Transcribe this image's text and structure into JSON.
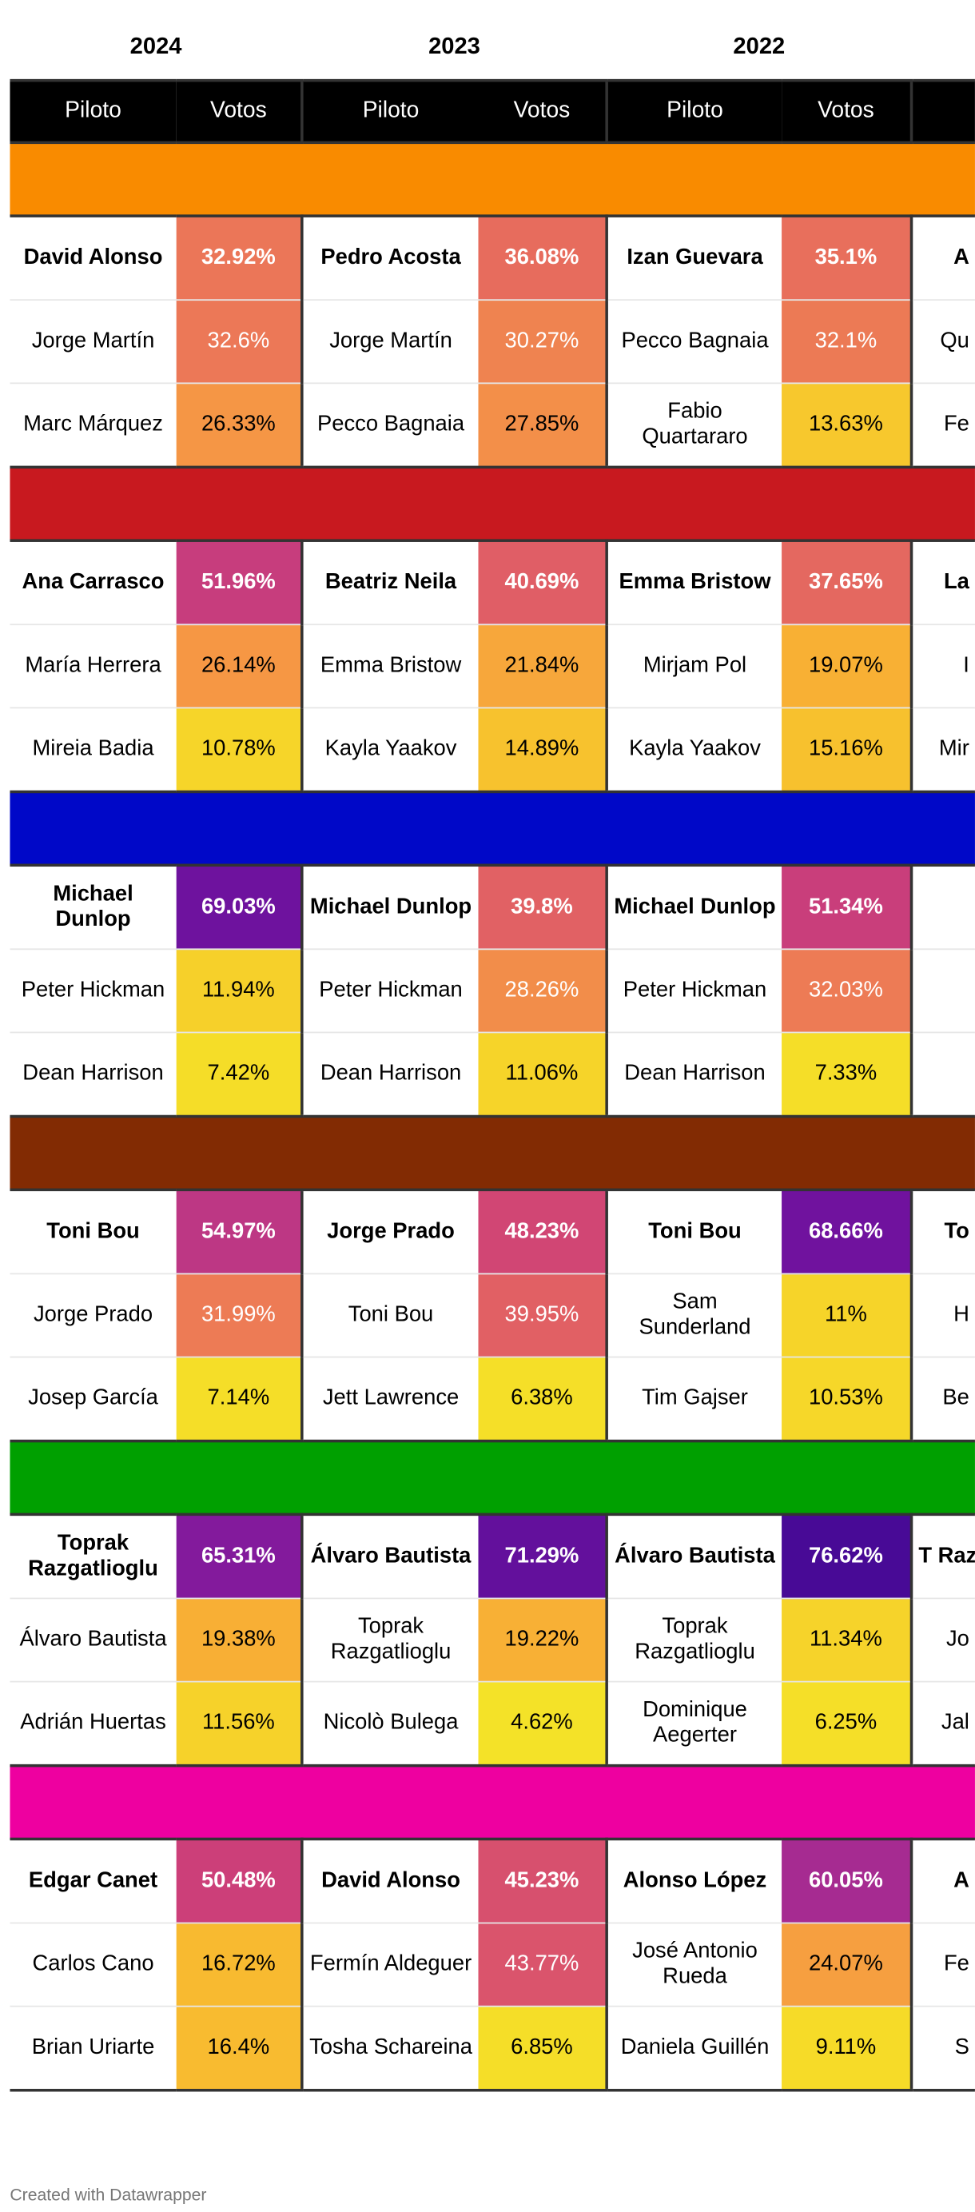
{
  "years": [
    "2024",
    "2023",
    "2022"
  ],
  "col_headers": {
    "pilot": "Piloto",
    "votes": "Votos"
  },
  "credit": "Created with Datawrapper",
  "chart_data": {
    "type": "table",
    "columns": [
      "2024",
      "2023",
      "2022"
    ],
    "groups": [
      {
        "color": "#f98b00",
        "rows": [
          [
            {
              "pilot": "David Alonso",
              "votes": "32.92%",
              "value": 32.92
            },
            {
              "pilot": "Pedro Acosta",
              "votes": "36.08%",
              "value": 36.08
            },
            {
              "pilot": "Izan Guevara",
              "votes": "35.1%",
              "value": 35.1
            }
          ],
          [
            {
              "pilot": "Jorge Martín",
              "votes": "32.6%",
              "value": 32.6
            },
            {
              "pilot": "Jorge Martín",
              "votes": "30.27%",
              "value": 30.27
            },
            {
              "pilot": "Pecco Bagnaia",
              "votes": "32.1%",
              "value": 32.1
            }
          ],
          [
            {
              "pilot": "Marc Márquez",
              "votes": "26.33%",
              "value": 26.33
            },
            {
              "pilot": "Pecco Bagnaia",
              "votes": "27.85%",
              "value": 27.85
            },
            {
              "pilot": "Fabio Quartararo",
              "votes": "13.63%",
              "value": 13.63
            }
          ]
        ]
      },
      {
        "color": "#c8191f",
        "rows": [
          [
            {
              "pilot": "Ana Carrasco",
              "votes": "51.96%",
              "value": 51.96
            },
            {
              "pilot": "Beatriz Neila",
              "votes": "40.69%",
              "value": 40.69
            },
            {
              "pilot": "Emma Bristow",
              "votes": "37.65%",
              "value": 37.65
            }
          ],
          [
            {
              "pilot": "María Herrera",
              "votes": "26.14%",
              "value": 26.14
            },
            {
              "pilot": "Emma Bristow",
              "votes": "21.84%",
              "value": 21.84
            },
            {
              "pilot": "Mirjam Pol",
              "votes": "19.07%",
              "value": 19.07
            }
          ],
          [
            {
              "pilot": "Mireia Badia",
              "votes": "10.78%",
              "value": 10.78
            },
            {
              "pilot": "Kayla Yaakov",
              "votes": "14.89%",
              "value": 14.89
            },
            {
              "pilot": "Kayla Yaakov",
              "votes": "15.16%",
              "value": 15.16
            }
          ]
        ]
      },
      {
        "color": "#0008c8",
        "rows": [
          [
            {
              "pilot": "Michael Dunlop",
              "votes": "69.03%",
              "value": 69.03
            },
            {
              "pilot": "Michael Dunlop",
              "votes": "39.8%",
              "value": 39.8
            },
            {
              "pilot": "Michael Dunlop",
              "votes": "51.34%",
              "value": 51.34
            }
          ],
          [
            {
              "pilot": "Peter Hickman",
              "votes": "11.94%",
              "value": 11.94
            },
            {
              "pilot": "Peter Hickman",
              "votes": "28.26%",
              "value": 28.26
            },
            {
              "pilot": "Peter Hickman",
              "votes": "32.03%",
              "value": 32.03
            }
          ],
          [
            {
              "pilot": "Dean Harrison",
              "votes": "7.42%",
              "value": 7.42
            },
            {
              "pilot": "Dean Harrison",
              "votes": "11.06%",
              "value": 11.06
            },
            {
              "pilot": "Dean Harrison",
              "votes": "7.33%",
              "value": 7.33
            }
          ]
        ]
      },
      {
        "color": "#822b03",
        "rows": [
          [
            {
              "pilot": "Toni Bou",
              "votes": "54.97%",
              "value": 54.97
            },
            {
              "pilot": "Jorge Prado",
              "votes": "48.23%",
              "value": 48.23
            },
            {
              "pilot": "Toni Bou",
              "votes": "68.66%",
              "value": 68.66
            }
          ],
          [
            {
              "pilot": "Jorge Prado",
              "votes": "31.99%",
              "value": 31.99
            },
            {
              "pilot": "Toni Bou",
              "votes": "39.95%",
              "value": 39.95
            },
            {
              "pilot": "Sam Sunderland",
              "votes": "11%",
              "value": 11
            }
          ],
          [
            {
              "pilot": "Josep García",
              "votes": "7.14%",
              "value": 7.14
            },
            {
              "pilot": "Jett Lawrence",
              "votes": "6.38%",
              "value": 6.38
            },
            {
              "pilot": "Tim Gajser",
              "votes": "10.53%",
              "value": 10.53
            }
          ]
        ]
      },
      {
        "color": "#00a000",
        "rows": [
          [
            {
              "pilot": "Toprak Razgatlioglu",
              "votes": "65.31%",
              "value": 65.31
            },
            {
              "pilot": "Álvaro Bautista",
              "votes": "71.29%",
              "value": 71.29
            },
            {
              "pilot": "Álvaro Bautista",
              "votes": "76.62%",
              "value": 76.62
            }
          ],
          [
            {
              "pilot": "Álvaro Bautista",
              "votes": "19.38%",
              "value": 19.38
            },
            {
              "pilot": "Toprak Razgatlioglu",
              "votes": "19.22%",
              "value": 19.22
            },
            {
              "pilot": "Toprak Razgatlioglu",
              "votes": "11.34%",
              "value": 11.34
            }
          ],
          [
            {
              "pilot": "Adrián Huertas",
              "votes": "11.56%",
              "value": 11.56
            },
            {
              "pilot": "Nicolò Bulega",
              "votes": "4.62%",
              "value": 4.62
            },
            {
              "pilot": "Dominique Aegerter",
              "votes": "6.25%",
              "value": 6.25
            }
          ]
        ]
      },
      {
        "color": "#ee00a0",
        "rows": [
          [
            {
              "pilot": "Edgar Canet",
              "votes": "50.48%",
              "value": 50.48
            },
            {
              "pilot": "David Alonso",
              "votes": "45.23%",
              "value": 45.23
            },
            {
              "pilot": "Alonso López",
              "votes": "60.05%",
              "value": 60.05
            }
          ],
          [
            {
              "pilot": "Carlos Cano",
              "votes": "16.72%",
              "value": 16.72
            },
            {
              "pilot": "Fermín Aldeguer",
              "votes": "43.77%",
              "value": 43.77
            },
            {
              "pilot": "José Antonio Rueda",
              "votes": "24.07%",
              "value": 24.07
            }
          ],
          [
            {
              "pilot": "Brian Uriarte",
              "votes": "16.4%",
              "value": 16.4
            },
            {
              "pilot": "Tosha Schareina",
              "votes": "6.85%",
              "value": 6.85
            },
            {
              "pilot": "Daniela Guillén",
              "votes": "9.11%",
              "value": 9.11
            }
          ]
        ]
      }
    ],
    "partial_fourth_column": {
      "rows": [
        "A",
        "Qu",
        "Fe",
        "La",
        "I",
        "Mir",
        "",
        "",
        "",
        "To",
        "H",
        "Be",
        "T Raz",
        "Jo",
        "Jal",
        "A",
        "Fe",
        "S"
      ]
    }
  }
}
